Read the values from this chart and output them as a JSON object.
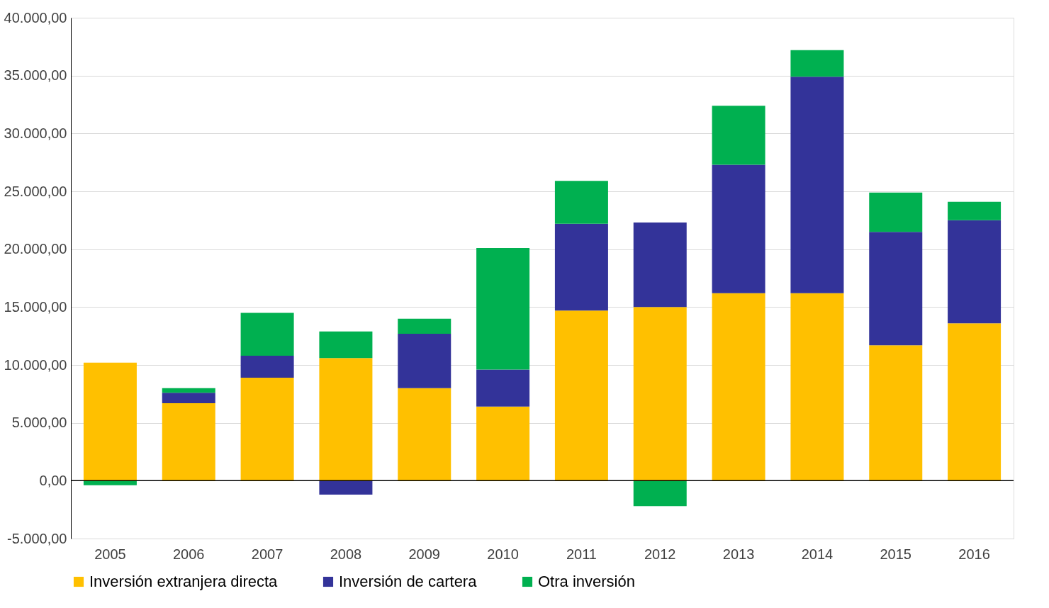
{
  "chart_data": {
    "type": "bar",
    "stacked": true,
    "categories": [
      "2005",
      "2006",
      "2007",
      "2008",
      "2009",
      "2010",
      "2011",
      "2012",
      "2013",
      "2014",
      "2015",
      "2016"
    ],
    "series": [
      {
        "name": "Inversión extranjera directa",
        "color": "#ffc000",
        "values": [
          10200,
          6700,
          8900,
          10600,
          8000,
          6400,
          14700,
          15000,
          16200,
          16200,
          11700,
          13600
        ]
      },
      {
        "name": "Inversión de cartera",
        "color": "#333399",
        "values": [
          0,
          900,
          1900,
          -1200,
          4700,
          3200,
          7500,
          7300,
          11100,
          18700,
          9800,
          8900
        ]
      },
      {
        "name": "Otra inversión",
        "color": "#00b050",
        "values": [
          -400,
          400,
          3700,
          2300,
          1300,
          10500,
          3700,
          -2200,
          5100,
          2300,
          3400,
          1600
        ]
      }
    ],
    "ylim": [
      -5000,
      40000
    ],
    "yticks": [
      {
        "value": -5000,
        "label": "-5.000,00"
      },
      {
        "value": 0,
        "label": "0,00"
      },
      {
        "value": 5000,
        "label": "5.000,00"
      },
      {
        "value": 10000,
        "label": "10.000,00"
      },
      {
        "value": 15000,
        "label": "15.000,00"
      },
      {
        "value": 20000,
        "label": "20.000,00"
      },
      {
        "value": 25000,
        "label": "25.000,00"
      },
      {
        "value": 30000,
        "label": "30.000,00"
      },
      {
        "value": 35000,
        "label": "35.000,00"
      },
      {
        "value": 40000,
        "label": "40.000,00"
      }
    ],
    "ref_lines": [
      {
        "axis": "y",
        "value": 0,
        "color": "#000000"
      }
    ],
    "grid": "y",
    "legend": "bottom"
  }
}
